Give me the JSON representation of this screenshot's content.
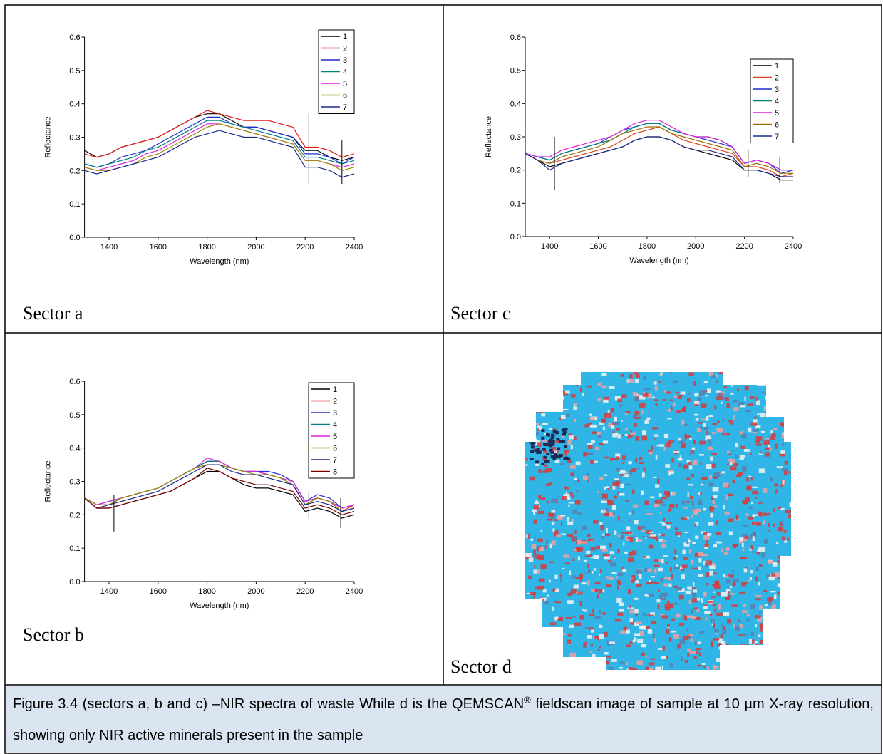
{
  "sectors": [
    "Sector a",
    "Sector c",
    "Sector b",
    "Sector d"
  ],
  "caption": {
    "before": "Figure 3.4 (sectors a, b and c) –NIR spectra of waste While d is the QEMSCAN",
    "sup": "®",
    "after": " fieldscan image of sample at 10 µm X-ray resolution, showing only NIR active minerals present in the sample"
  },
  "chart_data": [
    {
      "type": "line",
      "xlabel": "Wavelength (nm)",
      "ylabel": "Reflectance",
      "x": [
        1300,
        1350,
        1400,
        1450,
        1500,
        1550,
        1600,
        1650,
        1700,
        1750,
        1800,
        1850,
        1900,
        1950,
        2000,
        2050,
        2100,
        2150,
        2200,
        2250,
        2300,
        2350,
        2400
      ],
      "xlim": [
        1300,
        2400
      ],
      "xticks": [
        1400,
        1600,
        1800,
        2000,
        2200,
        2400
      ],
      "ylim": [
        0,
        0.6
      ],
      "yticks": [
        {
          "value": 0,
          "label": "0.0"
        },
        0.1,
        0.2,
        0.3,
        0.4,
        0.5,
        0.6
      ],
      "legend": "top-right",
      "series": [
        {
          "name": "1",
          "color": "#000000",
          "values": [
            0.26,
            0.24,
            0.25,
            0.27,
            0.28,
            0.29,
            0.3,
            0.32,
            0.34,
            0.36,
            0.37,
            0.37,
            0.35,
            0.33,
            0.33,
            0.32,
            0.31,
            0.3,
            0.26,
            0.26,
            0.24,
            0.23,
            0.24
          ]
        },
        {
          "name": "2",
          "color": "#e41a1c",
          "values": [
            0.25,
            0.24,
            0.25,
            0.27,
            0.28,
            0.29,
            0.3,
            0.32,
            0.34,
            0.36,
            0.38,
            0.37,
            0.36,
            0.35,
            0.35,
            0.35,
            0.34,
            0.33,
            0.27,
            0.27,
            0.26,
            0.24,
            0.25
          ]
        },
        {
          "name": "3",
          "color": "#1f2fd0",
          "values": [
            0.22,
            0.21,
            0.22,
            0.24,
            0.25,
            0.26,
            0.28,
            0.3,
            0.32,
            0.34,
            0.36,
            0.36,
            0.34,
            0.33,
            0.33,
            0.32,
            0.31,
            0.3,
            0.25,
            0.25,
            0.24,
            0.22,
            0.24
          ]
        },
        {
          "name": "4",
          "color": "#008080",
          "values": [
            0.22,
            0.21,
            0.22,
            0.23,
            0.24,
            0.26,
            0.27,
            0.29,
            0.31,
            0.33,
            0.35,
            0.35,
            0.34,
            0.33,
            0.32,
            0.31,
            0.3,
            0.29,
            0.24,
            0.24,
            0.23,
            0.22,
            0.23
          ]
        },
        {
          "name": "5",
          "color": "#e020e0",
          "values": [
            0.21,
            0.2,
            0.21,
            0.22,
            0.23,
            0.25,
            0.26,
            0.28,
            0.3,
            0.32,
            0.34,
            0.34,
            0.33,
            0.32,
            0.31,
            0.3,
            0.29,
            0.28,
            0.23,
            0.23,
            0.22,
            0.21,
            0.22
          ]
        },
        {
          "name": "6",
          "color": "#9a9000",
          "values": [
            0.21,
            0.2,
            0.2,
            0.21,
            0.22,
            0.24,
            0.25,
            0.27,
            0.29,
            0.31,
            0.33,
            0.34,
            0.33,
            0.32,
            0.31,
            0.3,
            0.29,
            0.28,
            0.23,
            0.23,
            0.22,
            0.2,
            0.21
          ]
        },
        {
          "name": "7",
          "color": "#1a2a8a",
          "values": [
            0.2,
            0.19,
            0.2,
            0.21,
            0.22,
            0.23,
            0.24,
            0.26,
            0.28,
            0.3,
            0.31,
            0.32,
            0.31,
            0.3,
            0.3,
            0.29,
            0.28,
            0.27,
            0.21,
            0.21,
            0.2,
            0.18,
            0.19
          ]
        }
      ],
      "marker_lines": [
        {
          "x": 2215,
          "y": [
            0.16,
            0.37
          ]
        },
        {
          "x": 2350,
          "y": [
            0.16,
            0.29
          ]
        }
      ]
    },
    {
      "type": "line",
      "xlabel": "Wavelength (nm)",
      "ylabel": "Reflectance",
      "x": [
        1300,
        1350,
        1400,
        1450,
        1500,
        1550,
        1600,
        1650,
        1700,
        1750,
        1800,
        1850,
        1900,
        1950,
        2000,
        2050,
        2100,
        2150,
        2200,
        2250,
        2300,
        2350,
        2400
      ],
      "xlim": [
        1300,
        2400
      ],
      "xticks": [
        1400,
        1600,
        1800,
        2000,
        2200,
        2400
      ],
      "ylim": [
        0,
        0.6
      ],
      "yticks": [
        {
          "value": 0,
          "label": "0.0"
        },
        0.1,
        0.2,
        0.3,
        0.4,
        0.5,
        0.6
      ],
      "legend": "top-right",
      "series": [
        {
          "name": "1",
          "color": "#000000",
          "values": [
            0.25,
            0.23,
            0.21,
            0.22,
            0.23,
            0.24,
            0.25,
            0.26,
            0.27,
            0.29,
            0.3,
            0.3,
            0.29,
            0.27,
            0.26,
            0.25,
            0.24,
            0.23,
            0.2,
            0.2,
            0.19,
            0.17,
            0.17
          ]
        },
        {
          "name": "2",
          "color": "#e0401c",
          "values": [
            0.25,
            0.23,
            0.22,
            0.23,
            0.24,
            0.25,
            0.26,
            0.27,
            0.29,
            0.31,
            0.32,
            0.33,
            0.31,
            0.29,
            0.28,
            0.27,
            0.26,
            0.25,
            0.21,
            0.21,
            0.2,
            0.18,
            0.19
          ]
        },
        {
          "name": "3",
          "color": "#1f2fd0",
          "values": [
            0.25,
            0.24,
            0.23,
            0.25,
            0.26,
            0.27,
            0.28,
            0.3,
            0.32,
            0.33,
            0.34,
            0.34,
            0.32,
            0.31,
            0.3,
            0.29,
            0.28,
            0.27,
            0.22,
            0.23,
            0.22,
            0.19,
            0.2
          ]
        },
        {
          "name": "4",
          "color": "#008080",
          "values": [
            0.25,
            0.24,
            0.23,
            0.25,
            0.26,
            0.27,
            0.28,
            0.29,
            0.31,
            0.33,
            0.34,
            0.34,
            0.32,
            0.31,
            0.3,
            0.3,
            0.29,
            0.27,
            0.22,
            0.23,
            0.22,
            0.2,
            0.2
          ]
        },
        {
          "name": "5",
          "color": "#e020e0",
          "values": [
            0.25,
            0.24,
            0.24,
            0.26,
            0.27,
            0.28,
            0.29,
            0.3,
            0.32,
            0.34,
            0.35,
            0.35,
            0.33,
            0.31,
            0.3,
            0.3,
            0.29,
            0.27,
            0.22,
            0.23,
            0.22,
            0.2,
            0.2
          ]
        },
        {
          "name": "6",
          "color": "#9a7000",
          "values": [
            0.25,
            0.23,
            0.22,
            0.24,
            0.25,
            0.26,
            0.27,
            0.29,
            0.31,
            0.32,
            0.33,
            0.33,
            0.31,
            0.3,
            0.29,
            0.28,
            0.27,
            0.26,
            0.21,
            0.22,
            0.21,
            0.19,
            0.19
          ]
        },
        {
          "name": "7",
          "color": "#1a2a8a",
          "values": [
            0.25,
            0.23,
            0.2,
            0.22,
            0.23,
            0.24,
            0.25,
            0.26,
            0.27,
            0.29,
            0.3,
            0.3,
            0.29,
            0.27,
            0.26,
            0.26,
            0.25,
            0.24,
            0.2,
            0.2,
            0.19,
            0.18,
            0.18
          ]
        }
      ],
      "marker_lines": [
        {
          "x": 1420,
          "y": [
            0.14,
            0.3
          ]
        },
        {
          "x": 2215,
          "y": [
            0.18,
            0.26
          ]
        },
        {
          "x": 2345,
          "y": [
            0.16,
            0.24
          ]
        }
      ]
    },
    {
      "type": "line",
      "xlabel": "Wavelength (nm)",
      "ylabel": "Reflectance",
      "x": [
        1300,
        1350,
        1400,
        1450,
        1500,
        1550,
        1600,
        1650,
        1700,
        1750,
        1800,
        1850,
        1900,
        1950,
        2000,
        2050,
        2100,
        2150,
        2200,
        2250,
        2300,
        2350,
        2400
      ],
      "xlim": [
        1300,
        2400
      ],
      "xticks": [
        1400,
        1600,
        1800,
        2000,
        2200,
        2400
      ],
      "ylim": [
        0,
        0.6
      ],
      "yticks": [
        {
          "value": 0,
          "label": "0.0"
        },
        0.1,
        0.2,
        0.3,
        0.4,
        0.5,
        0.6
      ],
      "legend": "top-right",
      "series": [
        {
          "name": "1",
          "color": "#000000",
          "values": [
            0.25,
            0.22,
            0.22,
            0.23,
            0.24,
            0.25,
            0.26,
            0.27,
            0.29,
            0.31,
            0.33,
            0.33,
            0.31,
            0.29,
            0.28,
            0.28,
            0.27,
            0.26,
            0.21,
            0.22,
            0.21,
            0.19,
            0.2
          ]
        },
        {
          "name": "2",
          "color": "#e41a1c",
          "values": [
            0.25,
            0.23,
            0.23,
            0.25,
            0.26,
            0.27,
            0.28,
            0.3,
            0.32,
            0.34,
            0.36,
            0.36,
            0.34,
            0.33,
            0.33,
            0.32,
            0.31,
            0.29,
            0.23,
            0.25,
            0.24,
            0.21,
            0.23
          ]
        },
        {
          "name": "3",
          "color": "#1f2fd0",
          "values": [
            0.25,
            0.23,
            0.24,
            0.25,
            0.26,
            0.27,
            0.28,
            0.3,
            0.32,
            0.34,
            0.36,
            0.36,
            0.34,
            0.33,
            0.33,
            0.33,
            0.32,
            0.3,
            0.24,
            0.26,
            0.25,
            0.22,
            0.23
          ]
        },
        {
          "name": "4",
          "color": "#008080",
          "values": [
            0.25,
            0.23,
            0.24,
            0.25,
            0.26,
            0.27,
            0.28,
            0.3,
            0.32,
            0.34,
            0.36,
            0.36,
            0.34,
            0.33,
            0.33,
            0.32,
            0.31,
            0.3,
            0.24,
            0.25,
            0.24,
            0.22,
            0.23
          ]
        },
        {
          "name": "5",
          "color": "#e020e0",
          "values": [
            0.25,
            0.23,
            0.24,
            0.25,
            0.26,
            0.27,
            0.28,
            0.3,
            0.32,
            0.34,
            0.37,
            0.36,
            0.34,
            0.33,
            0.33,
            0.32,
            0.31,
            0.3,
            0.24,
            0.25,
            0.24,
            0.22,
            0.23
          ]
        },
        {
          "name": "6",
          "color": "#9a9000",
          "values": [
            0.25,
            0.23,
            0.23,
            0.25,
            0.26,
            0.27,
            0.28,
            0.3,
            0.32,
            0.34,
            0.35,
            0.35,
            0.34,
            0.33,
            0.32,
            0.32,
            0.31,
            0.29,
            0.23,
            0.25,
            0.24,
            0.21,
            0.22
          ]
        },
        {
          "name": "7",
          "color": "#1a2a8a",
          "values": [
            0.25,
            0.22,
            0.23,
            0.24,
            0.25,
            0.26,
            0.27,
            0.29,
            0.31,
            0.33,
            0.35,
            0.35,
            0.33,
            0.32,
            0.32,
            0.31,
            0.3,
            0.29,
            0.23,
            0.24,
            0.23,
            0.21,
            0.22
          ]
        },
        {
          "name": "8",
          "color": "#800000",
          "values": [
            0.25,
            0.22,
            0.22,
            0.23,
            0.24,
            0.25,
            0.26,
            0.27,
            0.29,
            0.31,
            0.34,
            0.33,
            0.31,
            0.3,
            0.29,
            0.29,
            0.28,
            0.27,
            0.22,
            0.23,
            0.22,
            0.2,
            0.21
          ]
        }
      ],
      "marker_lines": [
        {
          "x": 1420,
          "y": [
            0.15,
            0.26
          ]
        },
        {
          "x": 2215,
          "y": [
            0.19,
            0.27
          ]
        },
        {
          "x": 2345,
          "y": [
            0.16,
            0.25
          ]
        }
      ]
    }
  ]
}
